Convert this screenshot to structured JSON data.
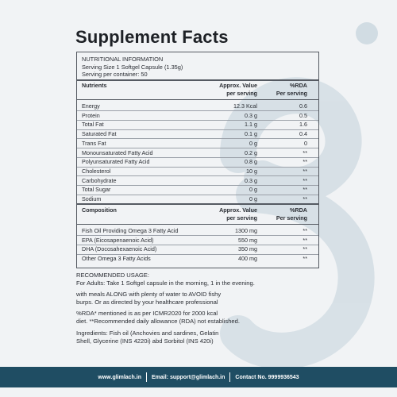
{
  "title": "Supplement Facts",
  "info": {
    "heading": "NUTRITIONAL INFORMATION",
    "serving_size": "Serving Size 1 Softgel Capsule (1.35g)",
    "servings_per_container": "Serving per container: 50"
  },
  "nutrients_header": {
    "name": "Nutrients",
    "value_line1": "Approx. Value",
    "value_line2": "per serving",
    "rda_line1": "%RDA",
    "rda_line2": "Per serving"
  },
  "nutrients": [
    {
      "name": "Energy",
      "value": "12.3 Kcal",
      "rda": "0.6"
    },
    {
      "name": "Protein",
      "value": "0.3 g",
      "rda": "0.5"
    },
    {
      "name": "Total Fat",
      "value": "1.1 g",
      "rda": "1.6"
    },
    {
      "name": "Saturated Fat",
      "value": "0.1 g",
      "rda": "0.4"
    },
    {
      "name": "Trans Fat",
      "value": "0 g",
      "rda": "0"
    },
    {
      "name": "Monounsaturated Fatty Acid",
      "value": "0.2 g",
      "rda": "**"
    },
    {
      "name": "Polyunsaturated  Fatty Acid",
      "value": "0.8 g",
      "rda": "**"
    },
    {
      "name": "Cholesterol",
      "value": "10 g",
      "rda": "**"
    },
    {
      "name": "Carbohydrate",
      "value": "0.3 g",
      "rda": "**"
    },
    {
      "name": "Total Sugar",
      "value": "0 g",
      "rda": "**"
    },
    {
      "name": "Sodium",
      "value": "0 g",
      "rda": "**"
    }
  ],
  "composition_header": {
    "name": "Composition",
    "value_line1": "Approx. Value",
    "value_line2": "per serving",
    "rda_line1": "%RDA",
    "rda_line2": "Per serving"
  },
  "composition": [
    {
      "name": "Fish Oil Providing Omega 3 Fatty Acid",
      "value": "1300 mg",
      "rda": "**"
    },
    {
      "name": "EPA (Eicosapenaenoic Acid)",
      "value": "550 mg",
      "rda": "**"
    },
    {
      "name": "DHA (Docosahexaenoic Acid)",
      "value": "350 mg",
      "rda": "**"
    },
    {
      "name": "Other Omega 3 Fatty Acids",
      "value": "400 mg",
      "rda": "**"
    }
  ],
  "usage": {
    "heading": "RECOMMENDED USAGE:",
    "line1": "For Adults: Take 1 Softgel capsule in the morning, 1 in the evening.",
    "line2": "with meals ALONG with plenty of water to AVOID fishy",
    "line3": "burps. Or as directed by your healthcare professional",
    "rda_note1": "%RDA* mentioned is as per ICMR2020 for 2000 kcal",
    "rda_note2": "diet. **Recommended daily allowance (RDA) not established.",
    "ingredients1": "Ingredients: Fish oil (Anchovies and sardines, Gelatin",
    "ingredients2": "Shell, Glycerine (INS 4220i) abd Sorbitol (INS 420i)"
  },
  "footer": {
    "website": "www.glimlach.in",
    "email": "Email: support@glimlach.in",
    "contact": "Contact No. 9999936543"
  },
  "colors": {
    "footer_bg": "#1f4d63",
    "background": "#f1f3f5",
    "watermark": "#b7c8d3"
  },
  "icons": {
    "watermark": "brand-g-watermark-icon"
  }
}
